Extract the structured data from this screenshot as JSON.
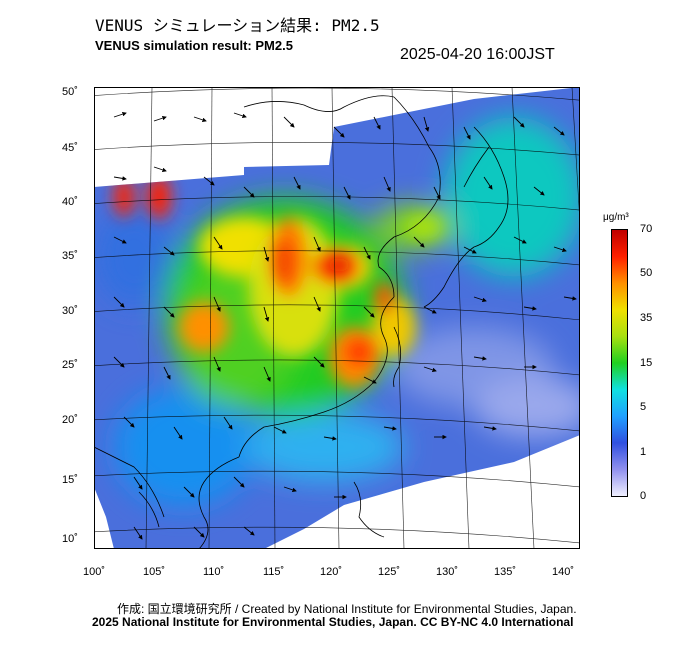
{
  "header": {
    "title_jp": "VENUS シミュレーション結果: PM2.5",
    "title_en": "VENUS simulation result: PM2.5",
    "timestamp": "2025-04-20 16:00JST"
  },
  "map": {
    "lat_labels": [
      "50˚",
      "45˚",
      "40˚",
      "35˚",
      "30˚",
      "25˚",
      "20˚",
      "15˚",
      "10˚"
    ],
    "lon_labels": [
      "100˚",
      "105˚",
      "110˚",
      "115˚",
      "120˚",
      "125˚",
      "130˚",
      "135˚",
      "140˚"
    ]
  },
  "legend": {
    "unit": "μg/m³",
    "ticks": [
      "70",
      "50",
      "35",
      "15",
      "5",
      "1",
      "0"
    ],
    "colors": [
      "#f0f0ff",
      "#9090ee",
      "#3050e0",
      "#20a0ff",
      "#10e0e0",
      "#20d020",
      "#a8e010",
      "#f0e000",
      "#ff9000",
      "#ff2000",
      "#c00000"
    ]
  },
  "footer": {
    "credit_1": "作成: 国立環境研究所 / Created by National Institute for Environmental Studies, Japan.",
    "credit_2": "2025 National Institute for Environmental Studies, Japan. CC BY-NC 4.0 International"
  }
}
